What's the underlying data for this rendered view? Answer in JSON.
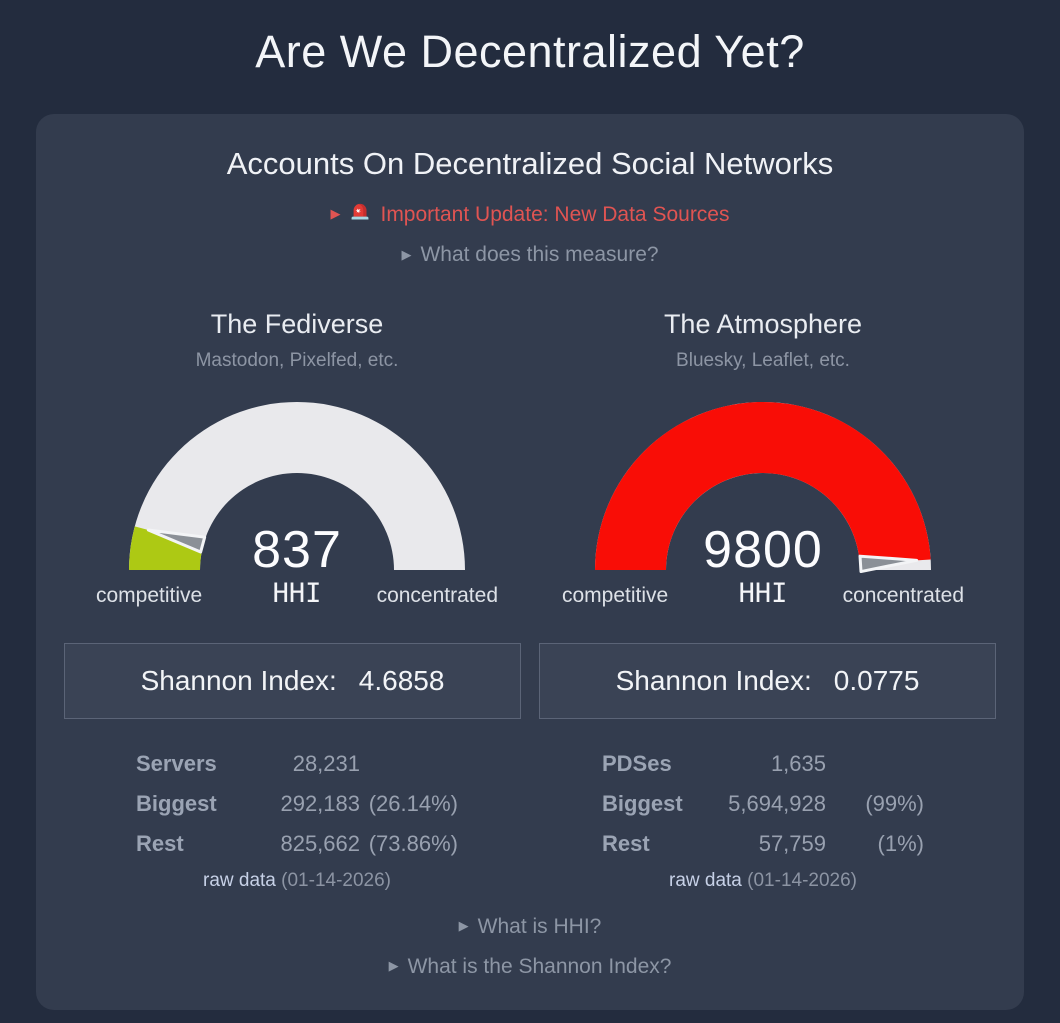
{
  "page": {
    "title": "Are We Decentralized Yet?"
  },
  "card": {
    "title": "Accounts On Decentralized Social Networks",
    "alert_toggle": {
      "icon": "siren-icon",
      "label": "Important Update: New Data Sources"
    },
    "measure_toggle": "What does this measure?",
    "footer_toggles": {
      "hhi": "What is HHI?",
      "shannon": "What is the Shannon Index?"
    }
  },
  "ui": {
    "disclosure_icon": "▶"
  },
  "colors": {
    "page_bg": "#232c3e",
    "card_bg": "#333c4e",
    "alert_red": "#e05452",
    "link_blue": "#c7d1e7",
    "gauge_track": "#e9e9ec",
    "gauge_green": "#adc914",
    "gauge_red": "#f90d06"
  },
  "chart_data": [
    {
      "type": "gauge",
      "title": "The Fediverse",
      "subtitle": "Mastodon, Pixelfed, etc.",
      "value": 837,
      "value_label": "837",
      "min": 0,
      "max": 10000,
      "unit": "HHI",
      "left_label": "competitive",
      "right_label": "concentrated",
      "fill_color": "#adc914",
      "shannon": {
        "label": "Shannon Index:",
        "value": "4.6858"
      },
      "stats": {
        "rows": [
          {
            "label": "Servers",
            "value": "28,231",
            "pct": ""
          },
          {
            "label": "Biggest",
            "value": "292,183",
            "pct": "(26.14%)"
          },
          {
            "label": "Rest",
            "value": "825,662",
            "pct": "(73.86%)"
          }
        ],
        "raw_link": "raw data",
        "date": "(01-14-2026)"
      }
    },
    {
      "type": "gauge",
      "title": "The Atmosphere",
      "subtitle": "Bluesky, Leaflet, etc.",
      "value": 9800,
      "value_label": "9800",
      "min": 0,
      "max": 10000,
      "unit": "HHI",
      "left_label": "competitive",
      "right_label": "concentrated",
      "fill_color": "#f90d06",
      "shannon": {
        "label": "Shannon Index:",
        "value": "0.0775"
      },
      "stats": {
        "rows": [
          {
            "label": "PDSes",
            "value": "1,635",
            "pct": ""
          },
          {
            "label": "Biggest",
            "value": "5,694,928",
            "pct": "(99%)"
          },
          {
            "label": "Rest",
            "value": "57,759",
            "pct": "(1%)"
          }
        ],
        "raw_link": "raw data",
        "date": "(01-14-2026)"
      }
    }
  ]
}
